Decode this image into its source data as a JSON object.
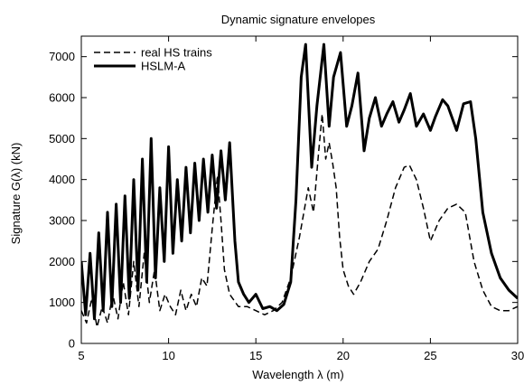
{
  "chart_data": {
    "type": "line",
    "title": "Dynamic signature envelopes",
    "xlabel": "Wavelength λ (m)",
    "ylabel": "Signature G(λ) (kN)",
    "xlim": [
      5,
      30
    ],
    "ylim": [
      0,
      7500
    ],
    "x_ticks": [
      5,
      10,
      15,
      20,
      25,
      30
    ],
    "x_tick_labels": [
      "5",
      "10",
      "15",
      "20",
      "25",
      "30"
    ],
    "y_ticks": [
      0,
      1000,
      2000,
      3000,
      4000,
      5000,
      6000,
      7000
    ],
    "y_tick_labels": [
      "0",
      "1000",
      "2000",
      "3000",
      "4000",
      "5000",
      "6000",
      "7000"
    ],
    "grid": false,
    "legend_position": "top-left",
    "series": [
      {
        "name": "real HS trains",
        "style": "dashed",
        "color": "#000000",
        "x": [
          5.0,
          5.3,
          5.6,
          5.9,
          6.2,
          6.5,
          6.8,
          7.1,
          7.4,
          7.7,
          8.0,
          8.3,
          8.6,
          8.9,
          9.2,
          9.5,
          9.8,
          10.1,
          10.4,
          10.7,
          11.0,
          11.3,
          11.6,
          11.9,
          12.2,
          12.5,
          12.8,
          13.0,
          13.2,
          13.5,
          14.0,
          14.5,
          15.0,
          15.5,
          16.0,
          16.5,
          17.0,
          17.5,
          18.0,
          18.3,
          18.6,
          18.8,
          19.0,
          19.2,
          19.4,
          19.6,
          19.8,
          20.0,
          20.3,
          20.6,
          21.0,
          21.5,
          22.0,
          22.5,
          23.0,
          23.5,
          23.8,
          24.2,
          24.6,
          25.0,
          25.2,
          25.5,
          26.0,
          26.5,
          27.0,
          27.5,
          28.0,
          28.5,
          29.0,
          29.5,
          30.0
        ],
        "y": [
          800,
          500,
          1100,
          400,
          900,
          500,
          1200,
          600,
          1500,
          700,
          2000,
          900,
          2200,
          1000,
          1800,
          800,
          1200,
          900,
          700,
          1300,
          800,
          1200,
          900,
          1600,
          1400,
          2800,
          4100,
          3000,
          1800,
          1200,
          900,
          900,
          800,
          700,
          800,
          1000,
          1600,
          2600,
          3800,
          3200,
          4700,
          5600,
          4500,
          4900,
          4400,
          3800,
          2600,
          1800,
          1400,
          1200,
          1500,
          2000,
          2300,
          3000,
          3800,
          4300,
          4350,
          4000,
          3300,
          2500,
          2700,
          3000,
          3300,
          3400,
          3200,
          2000,
          1300,
          900,
          800,
          800,
          900
        ]
      },
      {
        "name": "HSLM-A",
        "style": "solid",
        "color": "#000000",
        "x": [
          5.0,
          5.25,
          5.5,
          5.75,
          6.0,
          6.25,
          6.5,
          6.75,
          7.0,
          7.25,
          7.5,
          7.75,
          8.0,
          8.25,
          8.5,
          8.75,
          9.0,
          9.25,
          9.5,
          9.75,
          10.0,
          10.25,
          10.5,
          10.75,
          11.0,
          11.25,
          11.5,
          11.75,
          12.0,
          12.25,
          12.5,
          12.75,
          13.0,
          13.25,
          13.5,
          13.8,
          14.0,
          14.3,
          14.6,
          15.0,
          15.4,
          15.8,
          16.2,
          16.6,
          17.0,
          17.3,
          17.6,
          17.85,
          18.2,
          18.5,
          18.9,
          19.2,
          19.45,
          19.85,
          20.2,
          20.5,
          20.85,
          21.2,
          21.5,
          21.85,
          22.2,
          22.5,
          22.85,
          23.2,
          23.5,
          23.85,
          24.2,
          24.6,
          25.0,
          25.3,
          25.7,
          26.0,
          26.5,
          26.9,
          27.3,
          27.6,
          28.0,
          28.5,
          29.0,
          29.5,
          30.0
        ],
        "y": [
          2000,
          700,
          2200,
          600,
          2700,
          800,
          3200,
          900,
          3400,
          1000,
          3600,
          1100,
          4000,
          1300,
          4500,
          1500,
          5000,
          1600,
          3800,
          2000,
          4800,
          2200,
          4000,
          2500,
          4300,
          2700,
          4400,
          3000,
          4500,
          3200,
          4600,
          3300,
          4700,
          3500,
          4900,
          2500,
          1500,
          1200,
          1000,
          1200,
          850,
          900,
          800,
          950,
          1500,
          3500,
          6500,
          7300,
          4300,
          5800,
          7300,
          5300,
          6500,
          7100,
          5300,
          5800,
          6600,
          4700,
          5500,
          6000,
          5300,
          5600,
          5900,
          5400,
          5700,
          6100,
          5300,
          5600,
          5200,
          5550,
          5950,
          5800,
          5200,
          5850,
          5900,
          5000,
          3200,
          2200,
          1600,
          1300,
          1100
        ]
      }
    ]
  }
}
